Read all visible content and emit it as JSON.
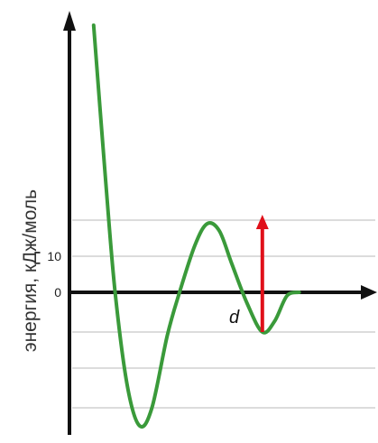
{
  "chart_data": {
    "type": "line",
    "ylabel": "энергия, кДж/моль",
    "xlabel": "d",
    "y_ticks": [
      {
        "value": 10,
        "label": "10"
      },
      {
        "value": 0,
        "label": "0"
      }
    ],
    "grid": true,
    "grid_values": [
      20,
      10,
      -11,
      -21,
      -32
    ],
    "ylim": [
      -38,
      50
    ],
    "xlim": [
      0,
      100
    ],
    "series": [
      {
        "color": "#3a9a3a",
        "points": [
          {
            "x": 7,
            "y": 74
          },
          {
            "x": 11,
            "y": 30
          },
          {
            "x": 14,
            "y": 0
          },
          {
            "x": 18,
            "y": -26
          },
          {
            "x": 22,
            "y": -37
          },
          {
            "x": 26,
            "y": -32
          },
          {
            "x": 31,
            "y": -12
          },
          {
            "x": 35,
            "y": 0
          },
          {
            "x": 40,
            "y": 13
          },
          {
            "x": 44,
            "y": 19
          },
          {
            "x": 48,
            "y": 17
          },
          {
            "x": 52,
            "y": 8
          },
          {
            "x": 57,
            "y": -3
          },
          {
            "x": 62,
            "y": -11
          },
          {
            "x": 66,
            "y": -8
          },
          {
            "x": 70,
            "y": -1
          },
          {
            "x": 74,
            "y": 0
          }
        ]
      }
    ],
    "annotations": [
      {
        "type": "arrow",
        "color": "#e0101a",
        "x": 62,
        "y_from": -11,
        "y_to": 21
      }
    ]
  }
}
